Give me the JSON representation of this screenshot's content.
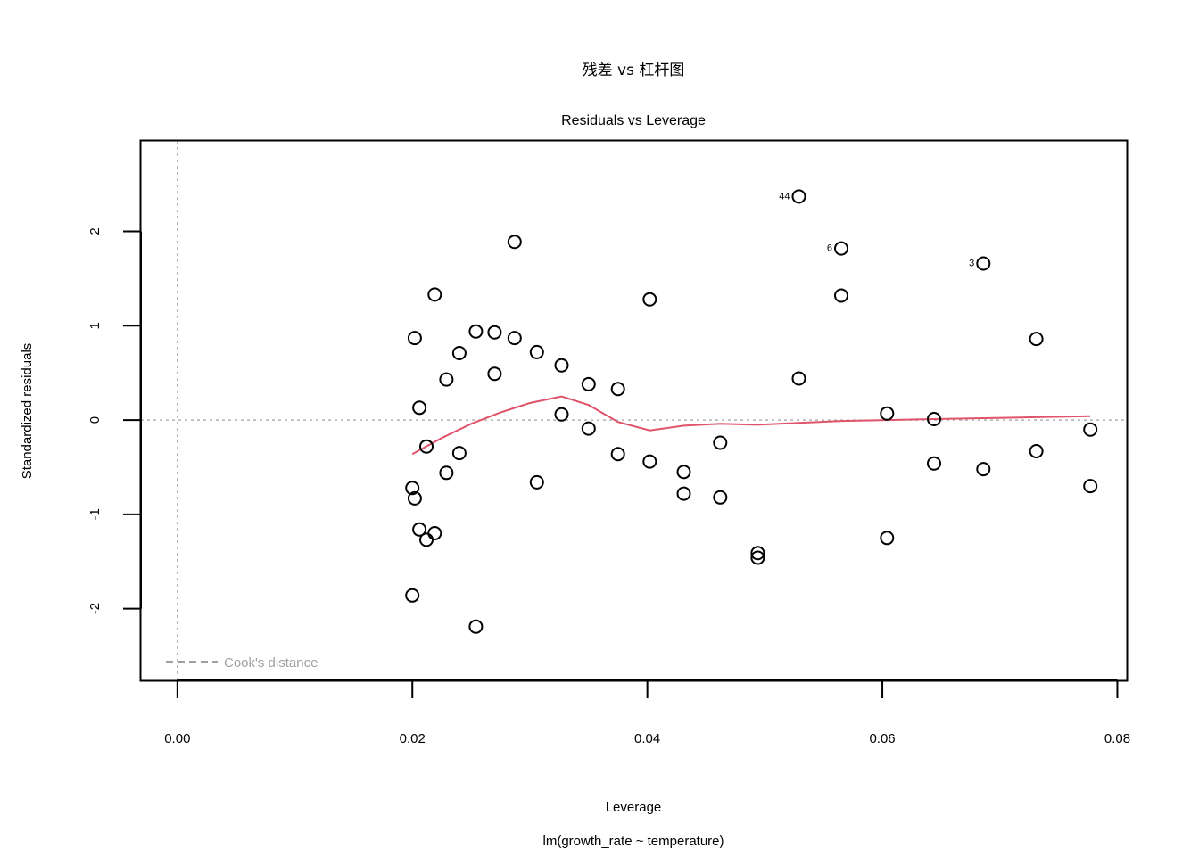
{
  "chart_data": {
    "type": "scatter",
    "title": "残差 vs 杠杆图",
    "subtitle": "Residuals vs Leverage",
    "xlabel": "Leverage",
    "ylabel": "Standardized residuals",
    "caption": "lm(growth_rate ~ temperature)",
    "xlim": [
      -0.0031,
      0.0808
    ],
    "ylim": [
      -2.76,
      2.96
    ],
    "x_ticks": [
      0.0,
      0.02,
      0.04,
      0.06,
      0.08
    ],
    "x_tick_labels": [
      "0.00",
      "0.02",
      "0.04",
      "0.06",
      "0.08"
    ],
    "y_ticks": [
      -2,
      -1,
      0,
      1,
      2
    ],
    "y_tick_labels": [
      "-2",
      "-1",
      "0",
      "1",
      "2"
    ],
    "grid": false,
    "reference_lines": {
      "x": 0,
      "y": 0,
      "style": "dotted"
    },
    "legend": {
      "position": "bottom-left",
      "entries": [
        {
          "label": "Cook's distance",
          "style": "dashed",
          "color": "#a0a0a0"
        }
      ]
    },
    "colors": {
      "points": "#000000",
      "smooth": "#DF536B",
      "reference": "#b0b0b0",
      "legend": "#a0a0a0"
    },
    "points": [
      {
        "x": 0.02,
        "y": -1.86
      },
      {
        "x": 0.02,
        "y": -0.72
      },
      {
        "x": 0.0202,
        "y": -0.83
      },
      {
        "x": 0.0202,
        "y": 0.87
      },
      {
        "x": 0.0206,
        "y": 0.13
      },
      {
        "x": 0.0206,
        "y": -1.16
      },
      {
        "x": 0.0212,
        "y": -0.28
      },
      {
        "x": 0.0212,
        "y": -1.27
      },
      {
        "x": 0.0219,
        "y": 1.33
      },
      {
        "x": 0.0219,
        "y": -1.2
      },
      {
        "x": 0.0229,
        "y": 0.43
      },
      {
        "x": 0.0229,
        "y": -0.56
      },
      {
        "x": 0.024,
        "y": 0.71
      },
      {
        "x": 0.024,
        "y": -0.35
      },
      {
        "x": 0.0254,
        "y": 0.94
      },
      {
        "x": 0.0254,
        "y": -2.19
      },
      {
        "x": 0.027,
        "y": 0.93
      },
      {
        "x": 0.027,
        "y": 0.49
      },
      {
        "x": 0.0287,
        "y": 1.89
      },
      {
        "x": 0.0287,
        "y": 0.87
      },
      {
        "x": 0.0306,
        "y": 0.72
      },
      {
        "x": 0.0306,
        "y": -0.66
      },
      {
        "x": 0.0327,
        "y": 0.58
      },
      {
        "x": 0.0327,
        "y": 0.06
      },
      {
        "x": 0.035,
        "y": 0.38
      },
      {
        "x": 0.035,
        "y": -0.09
      },
      {
        "x": 0.0375,
        "y": 0.33
      },
      {
        "x": 0.0375,
        "y": -0.36
      },
      {
        "x": 0.0402,
        "y": 1.28
      },
      {
        "x": 0.0402,
        "y": -0.44
      },
      {
        "x": 0.0431,
        "y": -0.55
      },
      {
        "x": 0.0431,
        "y": -0.78
      },
      {
        "x": 0.0462,
        "y": -0.24
      },
      {
        "x": 0.0462,
        "y": -0.82
      },
      {
        "x": 0.0494,
        "y": -1.41
      },
      {
        "x": 0.0494,
        "y": -1.46
      },
      {
        "x": 0.0529,
        "y": 2.37,
        "label": "44"
      },
      {
        "x": 0.0529,
        "y": 0.44
      },
      {
        "x": 0.0565,
        "y": 1.82,
        "label": "6"
      },
      {
        "x": 0.0565,
        "y": 1.32
      },
      {
        "x": 0.0604,
        "y": 0.07
      },
      {
        "x": 0.0604,
        "y": -1.25
      },
      {
        "x": 0.0644,
        "y": 0.01
      },
      {
        "x": 0.0644,
        "y": -0.46
      },
      {
        "x": 0.0686,
        "y": 1.66,
        "label": "3"
      },
      {
        "x": 0.0686,
        "y": -0.52
      },
      {
        "x": 0.0731,
        "y": 0.86
      },
      {
        "x": 0.0731,
        "y": -0.33
      },
      {
        "x": 0.0777,
        "y": -0.1
      },
      {
        "x": 0.0777,
        "y": -0.7
      }
    ],
    "smooth_line": {
      "x": [
        0.02,
        0.0225,
        0.025,
        0.0275,
        0.03,
        0.0327,
        0.035,
        0.0375,
        0.0402,
        0.0431,
        0.0462,
        0.0494,
        0.0529,
        0.0565,
        0.0604,
        0.0644,
        0.0686,
        0.0731,
        0.0777
      ],
      "y": [
        -0.36,
        -0.19,
        -0.04,
        0.08,
        0.18,
        0.25,
        0.16,
        -0.02,
        -0.11,
        -0.06,
        -0.04,
        -0.05,
        -0.03,
        -0.01,
        0.0,
        0.01,
        0.02,
        0.03,
        0.04
      ]
    }
  }
}
